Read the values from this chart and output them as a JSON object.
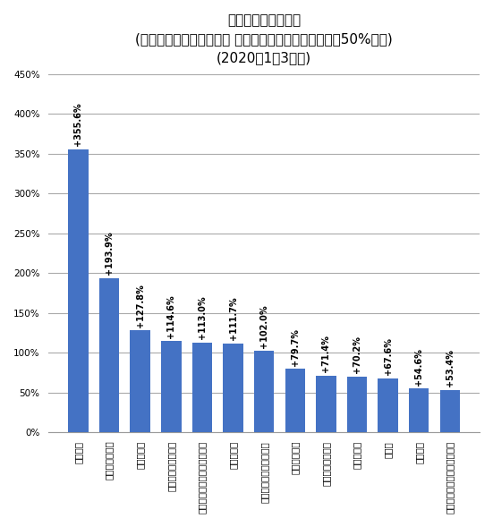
{
  "title_line1": "月あたりの支出金額",
  "title_line2": "(二人以上世帯、品目分類 小区分、前年同期比でプラス50%以上)",
  "title_line3": "(2020年1〜3月期)",
  "categories": [
    "衛生用品",
    "ふとん・まくら",
    "電気掃除機",
    "自動車以外の乗り物",
    "他の乗用車関連用品への支出",
    "ヘルメット",
    "他の乗用車関連サービス",
    "格闘技・武術",
    "格闘技・武術用具",
    "農業工の肥",
    "いびき",
    "テーパー",
    "他の音楽授業料等・サービス"
  ],
  "values": [
    355.6,
    193.9,
    127.8,
    114.6,
    113.0,
    111.7,
    102.0,
    79.7,
    71.4,
    70.2,
    67.6,
    54.6,
    53.4
  ],
  "labels": [
    "+355.6%",
    "+193.9%",
    "+127.8%",
    "+114.6%",
    "+113.0%",
    "+111.7%",
    "+102.0%",
    "+79.7%",
    "+71.4%",
    "+70.2%",
    "+67.6%",
    "+54.6%",
    "+53.4%"
  ],
  "bar_color": "#4472C4",
  "ylim": [
    0,
    450
  ],
  "yticks": [
    0,
    50,
    100,
    150,
    200,
    250,
    300,
    350,
    400,
    450
  ],
  "yticklabels": [
    "0%",
    "50%",
    "100%",
    "150%",
    "200%",
    "250%",
    "300%",
    "350%",
    "400%",
    "450%"
  ],
  "bg_color": "#FFFFFF",
  "plot_bg_color": "#FFFFFF",
  "grid_color": "#AAAAAA",
  "label_fontsize": 7.0,
  "tick_fontsize": 7.5,
  "title_fontsize1": 11,
  "title_fontsize2": 8.5
}
